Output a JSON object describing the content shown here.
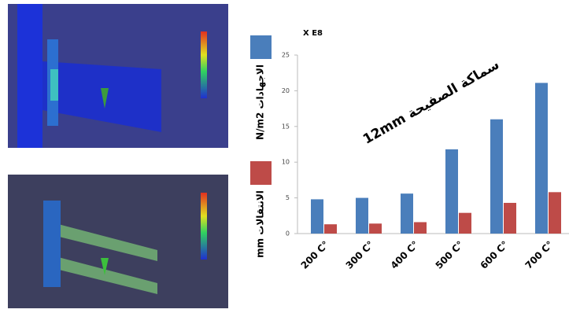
{
  "chart_data": {
    "type": "bar",
    "y_unit_label": "X E8",
    "annotation": "12mm سماكة الصفيحة",
    "categories": [
      "200 C°",
      "300 C°",
      "400 C°",
      "500 C°",
      "600 C°",
      "700 C°"
    ],
    "series": [
      {
        "name": "N/m2 الاجهادات",
        "color": "#4a7ebb",
        "values": [
          4.8,
          5.0,
          5.6,
          11.8,
          16.0,
          21.1
        ]
      },
      {
        "name": "mm الانتقالات",
        "color": "#be4b48",
        "values": [
          1.3,
          1.4,
          1.6,
          2.9,
          4.3,
          5.8
        ]
      }
    ],
    "ylim": [
      0,
      25
    ],
    "yticks": [
      0,
      5,
      10,
      15,
      20,
      25
    ],
    "grid": false
  }
}
